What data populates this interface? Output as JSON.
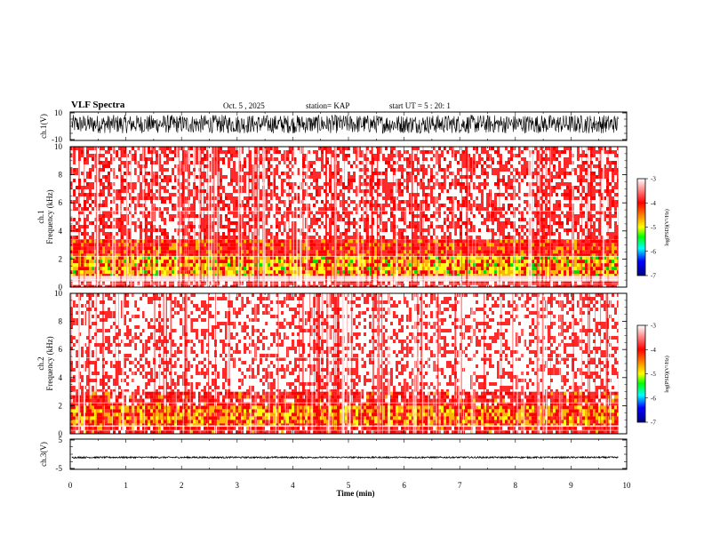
{
  "header": {
    "title": "VLF Spectra",
    "date": "Oct. 5 , 2025",
    "station": "station= KAP",
    "start": "start UT = 5 : 20: 1"
  },
  "chart_data": [
    {
      "type": "line",
      "name": "ch1-waveform",
      "ylabel": "ch.1(V)",
      "ylim": [
        -10,
        10
      ],
      "yticks": [
        "10",
        "-10"
      ],
      "xlim": [
        0,
        10
      ],
      "description_value_range": [
        -5,
        8
      ]
    },
    {
      "type": "heatmap",
      "name": "ch1-spectrogram",
      "ylabel_line1": "ch.1",
      "ylabel_line2": "Frequency (kHz)",
      "ylim": [
        0,
        10
      ],
      "yticks": [
        "0",
        "2",
        "4",
        "6",
        "8",
        "10"
      ],
      "xlim": [
        0,
        9.85
      ],
      "colorbar": {
        "label": "log(PSD)(V²/Hz)",
        "ticks": [
          "-3",
          "-4",
          "-5",
          "-6",
          "-7"
        ],
        "range": [
          -7,
          -3
        ]
      },
      "bands": [
        {
          "from_khz": 0.0,
          "to_khz": 0.4,
          "level": -3.5
        },
        {
          "from_khz": 0.8,
          "to_khz": 2.2,
          "level": -4.3
        },
        {
          "from_khz": 2.2,
          "to_khz": 3.4,
          "level": -3.8
        },
        {
          "from_khz": 3.4,
          "to_khz": 10.0,
          "level": -3.3
        }
      ]
    },
    {
      "type": "heatmap",
      "name": "ch2-spectrogram",
      "ylabel_line1": "ch.2",
      "ylabel_line2": "Frequency (kHz)",
      "ylim": [
        0,
        10
      ],
      "yticks": [
        "0",
        "2",
        "4",
        "6",
        "8",
        "10"
      ],
      "xlim": [
        0,
        9.85
      ],
      "colorbar": {
        "label": "log(PSD)(V²/Hz)",
        "ticks": [
          "-3",
          "-4",
          "-5",
          "-6",
          "-7"
        ],
        "range": [
          -7,
          -3
        ]
      },
      "bands": [
        {
          "from_khz": 0.0,
          "to_khz": 0.5,
          "level": -3.6
        },
        {
          "from_khz": 0.6,
          "to_khz": 2.0,
          "level": -4.1
        },
        {
          "from_khz": 2.0,
          "to_khz": 3.0,
          "level": -3.6
        },
        {
          "from_khz": 3.0,
          "to_khz": 10.0,
          "level": -3.1
        }
      ]
    },
    {
      "type": "line",
      "name": "ch3-waveform",
      "ylabel": "ch.3(V)",
      "ylim": [
        -5,
        5
      ],
      "yticks": [
        "5",
        "-5"
      ],
      "xlim": [
        0,
        10
      ],
      "description_value_range": [
        -1.3,
        -0.8
      ]
    }
  ],
  "x_axis": {
    "label": "Time (min)",
    "ticks": [
      "0",
      "1",
      "2",
      "3",
      "4",
      "5",
      "6",
      "7",
      "8",
      "9",
      "10"
    ],
    "range": [
      0,
      10
    ],
    "data_end_min": 9.85
  },
  "colors": {
    "white": "#ffffff",
    "red": "#ff0000",
    "yellow": "#ffff00",
    "green": "#00ff00",
    "cyan": "#00ffff",
    "blue": "#0000ff",
    "navy": "#000080"
  }
}
